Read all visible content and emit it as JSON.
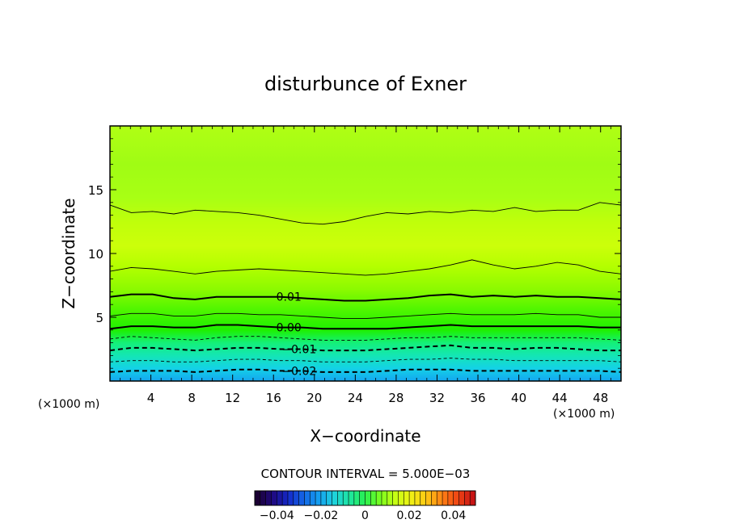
{
  "chart_data": {
    "type": "contour",
    "title": "disturbunce of Exner",
    "xlabel": "X−coordinate",
    "ylabel": "Z−coordinate",
    "x_unit": "(×1000 m)",
    "y_unit": "(×1000 m)",
    "xlim": [
      0,
      50
    ],
    "ylim": [
      0,
      20
    ],
    "x_ticks": [
      4,
      8,
      12,
      16,
      20,
      24,
      28,
      32,
      36,
      40,
      44,
      48
    ],
    "y_ticks": [
      5,
      10,
      15
    ],
    "contour_interval_text": "CONTOUR INTERVAL = 5.000E−03",
    "contour_interval": 0.005,
    "contour_labels": [
      {
        "text": "0.01",
        "value": 0.01,
        "x": 17.5,
        "z": 6.6
      },
      {
        "text": "0.00",
        "value": 0.0,
        "x": 17.5,
        "z": 4.2
      },
      {
        "text": "−0.01",
        "value": -0.01,
        "x": 18.5,
        "z": 2.5
      },
      {
        "text": "−0.02",
        "value": -0.02,
        "x": 18.5,
        "z": 0.8
      }
    ],
    "contours": [
      {
        "value": 0.005,
        "style": "thin",
        "z": [
          13.8,
          13.2,
          13.3,
          13.1,
          13.4,
          13.3,
          13.2,
          13.0,
          12.7,
          12.4,
          12.3,
          12.5,
          12.9,
          13.2,
          13.1,
          13.3,
          13.2,
          13.4,
          13.3,
          13.6,
          13.3,
          13.4,
          13.4,
          14.0,
          13.8
        ]
      },
      {
        "value": 0.0075,
        "style": "thin",
        "z": [
          8.6,
          8.9,
          8.8,
          8.6,
          8.4,
          8.6,
          8.7,
          8.8,
          8.7,
          8.6,
          8.5,
          8.4,
          8.3,
          8.4,
          8.6,
          8.8,
          9.1,
          9.5,
          9.1,
          8.8,
          9.0,
          9.3,
          9.1,
          8.6,
          8.4
        ]
      },
      {
        "value": 0.01,
        "style": "thick",
        "z": [
          6.6,
          6.8,
          6.8,
          6.5,
          6.4,
          6.6,
          6.6,
          6.6,
          6.6,
          6.5,
          6.4,
          6.3,
          6.3,
          6.4,
          6.5,
          6.7,
          6.8,
          6.6,
          6.7,
          6.6,
          6.7,
          6.6,
          6.6,
          6.5,
          6.4
        ]
      },
      {
        "value": 0.0075,
        "style": "thin",
        "z": [
          5.1,
          5.3,
          5.3,
          5.1,
          5.1,
          5.3,
          5.3,
          5.2,
          5.2,
          5.1,
          5.0,
          4.9,
          4.9,
          5.0,
          5.1,
          5.2,
          5.3,
          5.2,
          5.2,
          5.2,
          5.3,
          5.2,
          5.2,
          5.0,
          5.0
        ]
      },
      {
        "value": 0.0,
        "style": "thick",
        "z": [
          4.1,
          4.3,
          4.3,
          4.2,
          4.2,
          4.4,
          4.4,
          4.3,
          4.2,
          4.2,
          4.1,
          4.1,
          4.1,
          4.1,
          4.2,
          4.3,
          4.4,
          4.3,
          4.3,
          4.3,
          4.3,
          4.3,
          4.3,
          4.2,
          4.2
        ]
      },
      {
        "value": -0.0025,
        "style": "thin-dash",
        "z": [
          3.3,
          3.5,
          3.4,
          3.3,
          3.2,
          3.4,
          3.5,
          3.5,
          3.4,
          3.3,
          3.2,
          3.2,
          3.2,
          3.3,
          3.4,
          3.4,
          3.5,
          3.4,
          3.4,
          3.4,
          3.4,
          3.4,
          3.4,
          3.3,
          3.2
        ]
      },
      {
        "value": -0.01,
        "style": "thick-dash",
        "z": [
          2.4,
          2.6,
          2.6,
          2.5,
          2.4,
          2.5,
          2.6,
          2.6,
          2.5,
          2.5,
          2.4,
          2.4,
          2.4,
          2.5,
          2.6,
          2.7,
          2.8,
          2.6,
          2.6,
          2.5,
          2.6,
          2.6,
          2.5,
          2.4,
          2.4
        ]
      },
      {
        "value": -0.0175,
        "style": "thin-dash",
        "z": [
          1.5,
          1.6,
          1.6,
          1.5,
          1.5,
          1.6,
          1.7,
          1.7,
          1.6,
          1.6,
          1.5,
          1.5,
          1.5,
          1.6,
          1.7,
          1.7,
          1.8,
          1.7,
          1.7,
          1.6,
          1.6,
          1.6,
          1.6,
          1.6,
          1.5
        ]
      },
      {
        "value": -0.02,
        "style": "thick-dash",
        "z": [
          0.7,
          0.8,
          0.8,
          0.8,
          0.7,
          0.8,
          0.9,
          0.9,
          0.8,
          0.8,
          0.7,
          0.7,
          0.7,
          0.8,
          0.9,
          0.9,
          0.9,
          0.8,
          0.8,
          0.8,
          0.8,
          0.8,
          0.8,
          0.8,
          0.7
        ]
      }
    ],
    "colorbar": {
      "range": [
        -0.05,
        0.05
      ],
      "ticks": [
        {
          "label": "−0.04",
          "value": -0.04
        },
        {
          "label": "−0.02",
          "value": -0.02
        },
        {
          "label": "0",
          "value": 0
        },
        {
          "label": "0.02",
          "value": 0.02
        },
        {
          "label": "0.04",
          "value": 0.04
        }
      ],
      "colors": [
        "#1a0033",
        "#1f0a80",
        "#1428c8",
        "#1466e6",
        "#14a0f0",
        "#1ed2dc",
        "#1ee6a0",
        "#28f050",
        "#7aff1e",
        "#c8ff14",
        "#f0f014",
        "#ffc814",
        "#ff8214",
        "#f04614",
        "#c81414"
      ]
    },
    "field_colors": {
      "top": "#9eff14",
      "upper_band": "#d4ff14",
      "mid": "#a8ff14",
      "green": "#28f000",
      "cyan": "#14e6c8",
      "blue": "#14b4f0"
    }
  }
}
